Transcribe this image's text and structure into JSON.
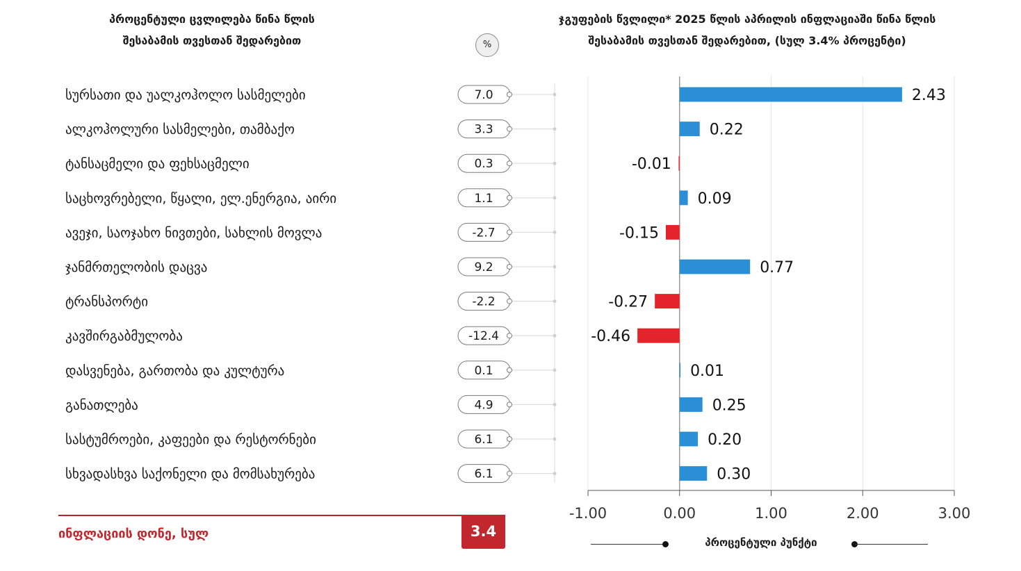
{
  "header_left": {
    "line1": "პროცენტული ცვლილება წინა წლის",
    "line2": "შესაბამის თვესთან შედარებით"
  },
  "percent_badge": "%",
  "header_right": {
    "line1": "ჯგუფების წვლილი* 2025 წლის აპრილის ინფლაციაში წინა წლის",
    "line2": "შესაბამის თვესთან შედარებით, (სულ 3.4% პროცენტი)"
  },
  "total": {
    "label": "ინფლაციის დონე, სულ",
    "value": "3.4"
  },
  "legend_text": "პროცენტული პუნქტი",
  "colors": {
    "positive": "#2b8fd6",
    "negative": "#e4232b",
    "total_red": "#c1272d"
  },
  "chart_data": {
    "type": "bar",
    "orientation": "horizontal",
    "categories": [
      "სურსათი და უალკოჰოლო სასმელები",
      "ალკოჰოლური სასმელები, თამბაქო",
      "ტანსაცმელი და ფეხსაცმელი",
      "საცხოვრებელი, წყალი, ელ.ენერგია, აირი",
      "ავეჯი, საოჯახო ნივთები, სახლის მოვლა",
      "ჯანმრთელობის დაცვა",
      "ტრანსპორტი",
      "კავშირგაბმულობა",
      "დასვენება, გართობა და კულტურა",
      "განათლება",
      "სასტუმროები, კაფეები და რესტორნები",
      "სხვადასხვა საქონელი და მომსახურება"
    ],
    "annual_change_pct": [
      "7.0",
      "3.3",
      "0.3",
      "1.1",
      "-2.7",
      "9.2",
      "-2.2",
      "-12.4",
      "0.1",
      "4.9",
      "6.1",
      "6.1"
    ],
    "values": [
      2.43,
      0.22,
      -0.01,
      0.09,
      -0.15,
      0.77,
      -0.27,
      -0.46,
      0.01,
      0.25,
      0.2,
      0.3
    ],
    "value_labels": [
      "2.43",
      "0.22",
      "-0.01",
      "0.09",
      "-0.15",
      "0.77",
      "-0.27",
      "-0.46",
      "0.01",
      "0.25",
      "0.20",
      "0.30"
    ],
    "xlim": [
      -1.0,
      3.0
    ],
    "xticks": [
      -1.0,
      0.0,
      1.0,
      2.0,
      3.0
    ],
    "xtick_labels": [
      "-1.00",
      "0.00",
      "1.00",
      "2.00",
      "3.00"
    ],
    "grid": true
  }
}
